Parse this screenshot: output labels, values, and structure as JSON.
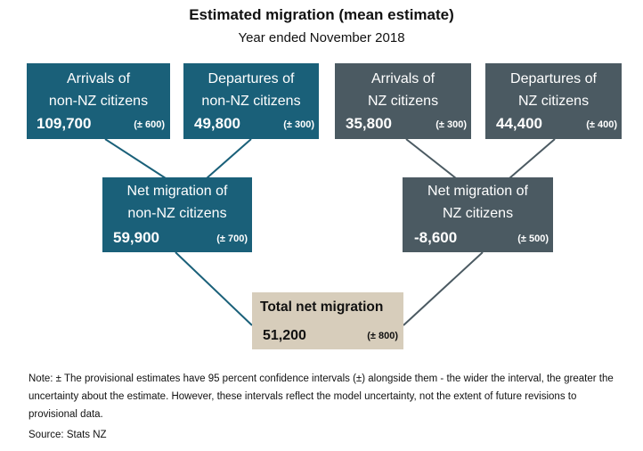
{
  "title": "Estimated migration (mean estimate)",
  "subtitle": "Year ended November 2018",
  "boxes": {
    "arrivals_non_nz": {
      "line1": "Arrivals of",
      "line2": "non-NZ citizens",
      "value": "109,700",
      "ci": "(± 600)",
      "color": "#1a6079"
    },
    "departures_non_nz": {
      "line1": "Departures of",
      "line2": "non-NZ citizens",
      "value": "49,800",
      "ci": "(± 300)",
      "color": "#1a6079"
    },
    "arrivals_nz": {
      "line1": "Arrivals of",
      "line2": "NZ citizens",
      "value": "35,800",
      "ci": "(± 300)",
      "color": "#4b5a62"
    },
    "departures_nz": {
      "line1": "Departures of",
      "line2": "NZ citizens",
      "value": "44,400",
      "ci": "(± 400)",
      "color": "#4b5a62"
    },
    "net_non_nz": {
      "line1": "Net migration of",
      "line2": "non-NZ citizens",
      "value": "59,900",
      "ci": "(± 700)",
      "color": "#1a6079"
    },
    "net_nz": {
      "line1": "Net migration of",
      "line2": "NZ citizens",
      "value": "-8,600",
      "ci": "(± 500)",
      "color": "#4b5a62"
    },
    "total": {
      "line1": "Total net migration",
      "value": "51,200",
      "ci": "(± 800)",
      "color": "#d7cdbb"
    }
  },
  "note": "Note: ± The provisional estimates have 95 percent confidence intervals (±) alongside them - the wider the interval, the greater the uncertainty about the estimate. However, these intervals reflect the model uncertainty, not the extent of future revisions to provisional data.",
  "source": "Source: Stats NZ",
  "colors": {
    "teal": "#1a6079",
    "slate": "#4b5a62",
    "beige": "#d7cdbb",
    "connector": "#1a6079",
    "connector_nz": "#4b5a62"
  }
}
